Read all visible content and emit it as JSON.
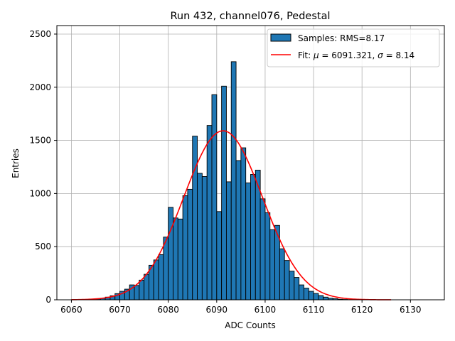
{
  "chart_data": {
    "type": "bar",
    "title": "Run 432, channel076, Pedestal",
    "xlabel": "ADC Counts",
    "ylabel": "Entries",
    "xlim": [
      6057,
      6137
    ],
    "ylim": [
      0,
      2580
    ],
    "xticks": [
      6060,
      6070,
      6080,
      6090,
      6100,
      6110,
      6120,
      6130
    ],
    "yticks": [
      0,
      500,
      1000,
      1500,
      2000,
      2500
    ],
    "grid": true,
    "legend_position": "top-right",
    "bin_width": 1,
    "series": [
      {
        "name": "Samples: RMS=8.17",
        "kind": "histogram",
        "color": "#1f77b4",
        "edgecolor": "#000000",
        "bin_starts": [
          6064,
          6065,
          6066,
          6067,
          6068,
          6069,
          6070,
          6071,
          6072,
          6073,
          6074,
          6075,
          6076,
          6077,
          6078,
          6079,
          6080,
          6081,
          6082,
          6083,
          6084,
          6085,
          6086,
          6087,
          6088,
          6089,
          6090,
          6091,
          6092,
          6093,
          6094,
          6095,
          6096,
          6097,
          6098,
          6099,
          6100,
          6101,
          6102,
          6103,
          6104,
          6105,
          6106,
          6107,
          6108,
          6109,
          6110,
          6111,
          6112,
          6113,
          6114,
          6115,
          6116,
          6117
        ],
        "values": [
          4,
          8,
          14,
          25,
          38,
          58,
          80,
          100,
          140,
          135,
          185,
          240,
          325,
          375,
          425,
          590,
          870,
          770,
          760,
          980,
          1040,
          1540,
          1190,
          1160,
          1640,
          1930,
          830,
          2010,
          1110,
          2240,
          1310,
          1430,
          1100,
          1180,
          1220,
          950,
          820,
          660,
          700,
          480,
          370,
          270,
          210,
          140,
          110,
          80,
          60,
          40,
          25,
          15,
          10,
          5,
          3,
          2
        ]
      },
      {
        "name": "Fit: μ = 6091.321, σ = 8.14",
        "kind": "line",
        "color": "#ff0000",
        "mu": 6091.321,
        "sigma": 8.14,
        "peak": 1590,
        "x_range": [
          6060,
          6126
        ]
      }
    ],
    "legend": [
      {
        "label": "Samples: RMS=8.17",
        "swatch": "patch"
      },
      {
        "label_prefix": "Fit: ",
        "mu_symbol": "μ",
        "label_mid": " = 6091.321, ",
        "sigma_symbol": "σ",
        "label_suffix": " = 8.14",
        "swatch": "line"
      }
    ]
  }
}
